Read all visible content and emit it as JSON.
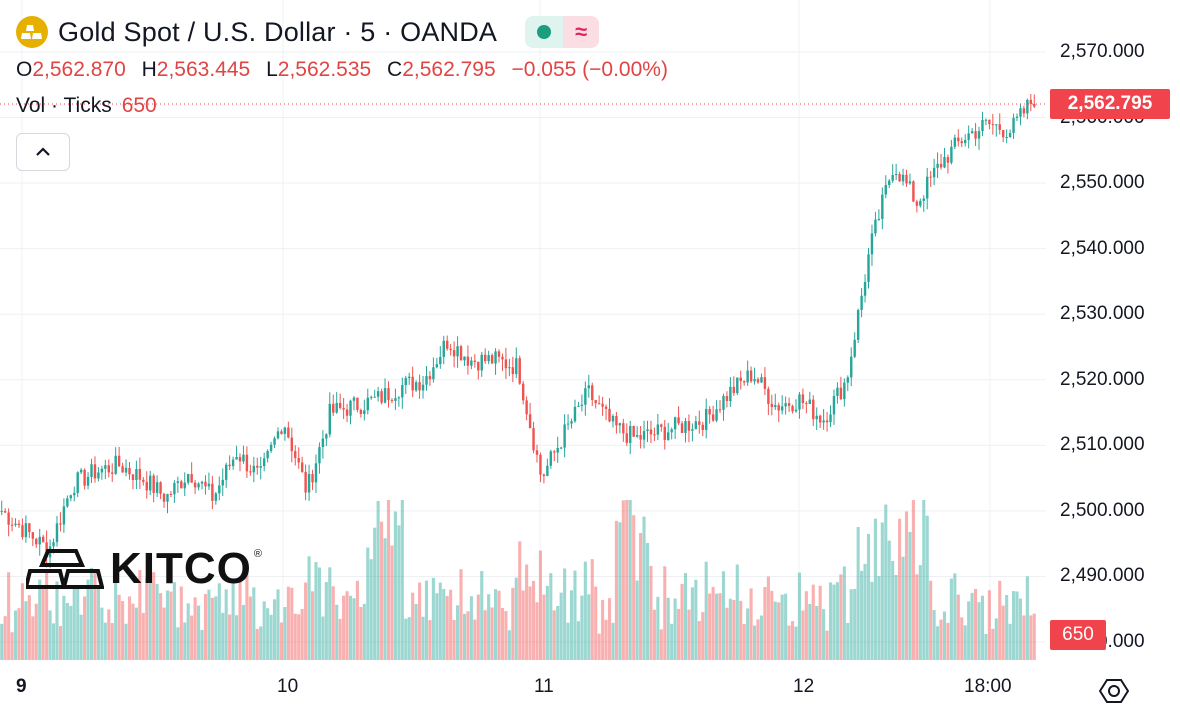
{
  "header": {
    "symbol_title": "Gold Spot / U.S. Dollar · 5 · OANDA",
    "open_key": "O",
    "open": "2,562.870",
    "high_key": "H",
    "high": "2,563.445",
    "low_key": "L",
    "low": "2,562.535",
    "close_key": "C",
    "close": "2,562.795",
    "change": "−0.055 (−0.00%)",
    "vol_label": "Vol · Ticks",
    "vol_value": "650"
  },
  "price_axis": {
    "ticks": [
      "2,570.000",
      "2,560.000",
      "2,550.000",
      "2,540.000",
      "2,530.000",
      "2,520.000",
      "2,510.000",
      "2,500.000",
      "2,490.000",
      "2,480.000"
    ],
    "last_price": "2,562.795",
    "last_volume": "650"
  },
  "time_axis": {
    "ticks": [
      "9",
      "10",
      "11",
      "12",
      "18:00"
    ]
  },
  "watermark": {
    "text": "KITCO",
    "mark": "®"
  },
  "colors": {
    "up": "#26a69a",
    "down": "#ef5350",
    "accent": "#f0434c",
    "grid": "#eef0f3"
  },
  "icons": {
    "symbol": "gold-bars-icon",
    "collapse": "chevron-up-icon",
    "settings": "settings-icon"
  },
  "chart_data": {
    "type": "candlestick",
    "interval": "5 min",
    "x_axis_labels": [
      "9",
      "10",
      "11",
      "12",
      "18:00"
    ],
    "ylim": [
      2480,
      2572
    ],
    "grid": true,
    "close_path": [
      {
        "x": "9",
        "y": 2500
      },
      {
        "x": "9 ~+2h",
        "y": 2497
      },
      {
        "x": "9 ~+4h",
        "y": 2494
      },
      {
        "x": "9 ~+6h",
        "y": 2504
      },
      {
        "x": "9 ~+8h",
        "y": 2506
      },
      {
        "x": "9 ~+10h",
        "y": 2507
      },
      {
        "x": "9 ~+12h",
        "y": 2505
      },
      {
        "x": "9 ~+14h",
        "y": 2502
      },
      {
        "x": "9 ~+16h",
        "y": 2506
      },
      {
        "x": "9 ~+18h",
        "y": 2502
      },
      {
        "x": "9 ~+20h",
        "y": 2509
      },
      {
        "x": "9 ~+22h",
        "y": 2505
      },
      {
        "x": "10 ~+0h",
        "y": 2514
      },
      {
        "x": "10 ~+2h",
        "y": 2503
      },
      {
        "x": "10 ~+4h",
        "y": 2515
      },
      {
        "x": "10 ~+8h",
        "y": 2516
      },
      {
        "x": "10 ~+12h",
        "y": 2517
      },
      {
        "x": "10 ~+16h",
        "y": 2519
      },
      {
        "x": "10 ~+20h",
        "y": 2520
      },
      {
        "x": "11 ~+0h",
        "y": 2526
      },
      {
        "x": "11 ~+2h",
        "y": 2523
      },
      {
        "x": "11 ~+4h",
        "y": 2523
      },
      {
        "x": "11 ~+6h",
        "y": 2522
      },
      {
        "x": "11 ~+8h",
        "y": 2505
      },
      {
        "x": "11 ~+10h",
        "y": 2512
      },
      {
        "x": "11 ~+12h",
        "y": 2518
      },
      {
        "x": "11 ~+14h",
        "y": 2513
      },
      {
        "x": "11 ~+16h",
        "y": 2511
      },
      {
        "x": "11 ~+18h",
        "y": 2512
      },
      {
        "x": "11 ~+20h",
        "y": 2513
      },
      {
        "x": "11 ~+22h",
        "y": 2514
      },
      {
        "x": "12 ~+0h",
        "y": 2518
      },
      {
        "x": "12 ~+2h",
        "y": 2521
      },
      {
        "x": "12 ~+4h",
        "y": 2516
      },
      {
        "x": "12 ~+6h",
        "y": 2517
      },
      {
        "x": "12 ~+8h",
        "y": 2514
      },
      {
        "x": "12 ~+10h",
        "y": 2520
      },
      {
        "x": "12 ~+12h",
        "y": 2540
      },
      {
        "x": "12 ~+14h",
        "y": 2553
      },
      {
        "x": "12 ~+16h",
        "y": 2547
      },
      {
        "x": "12 ~+17h",
        "y": 2553
      },
      {
        "x": "12 ~+18h",
        "y": 2557
      },
      {
        "x": "18:00",
        "y": 2559
      },
      {
        "x": "18:00 ~+1h",
        "y": 2558
      },
      {
        "x": "18:00 ~+2h",
        "y": 2563
      }
    ]
  }
}
